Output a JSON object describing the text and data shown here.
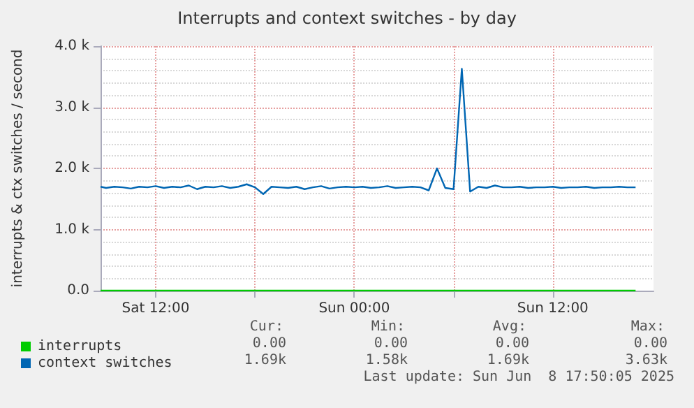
{
  "chart_data": {
    "type": "line",
    "title": "Interrupts and context switches - by day",
    "ylabel": "interrupts & ctx switches / second",
    "x": [
      "2025-06-07T08:40",
      "2025-06-07T09:00",
      "2025-06-07T09:30",
      "2025-06-07T10:00",
      "2025-06-07T10:30",
      "2025-06-07T11:00",
      "2025-06-07T11:30",
      "2025-06-07T12:00",
      "2025-06-07T12:30",
      "2025-06-07T13:00",
      "2025-06-07T13:30",
      "2025-06-07T14:00",
      "2025-06-07T14:30",
      "2025-06-07T15:00",
      "2025-06-07T15:30",
      "2025-06-07T16:00",
      "2025-06-07T16:30",
      "2025-06-07T17:00",
      "2025-06-07T17:30",
      "2025-06-07T18:00",
      "2025-06-07T18:30",
      "2025-06-07T19:00",
      "2025-06-07T19:30",
      "2025-06-07T20:00",
      "2025-06-07T20:30",
      "2025-06-07T21:00",
      "2025-06-07T21:30",
      "2025-06-07T22:00",
      "2025-06-07T22:30",
      "2025-06-07T23:00",
      "2025-06-07T23:30",
      "2025-06-08T00:00",
      "2025-06-08T00:30",
      "2025-06-08T01:00",
      "2025-06-08T01:30",
      "2025-06-08T02:00",
      "2025-06-08T02:30",
      "2025-06-08T03:00",
      "2025-06-08T03:30",
      "2025-06-08T04:00",
      "2025-06-08T04:30",
      "2025-06-08T05:00",
      "2025-06-08T05:30",
      "2025-06-08T06:00",
      "2025-06-08T06:30",
      "2025-06-08T07:00",
      "2025-06-08T07:30",
      "2025-06-08T08:00",
      "2025-06-08T08:30",
      "2025-06-08T09:00",
      "2025-06-08T09:30",
      "2025-06-08T10:00",
      "2025-06-08T10:30",
      "2025-06-08T11:00",
      "2025-06-08T11:30",
      "2025-06-08T12:00",
      "2025-06-08T12:30",
      "2025-06-08T13:00",
      "2025-06-08T13:30",
      "2025-06-08T14:00",
      "2025-06-08T14:30",
      "2025-06-08T15:00",
      "2025-06-08T15:30",
      "2025-06-08T16:00",
      "2025-06-08T16:30",
      "2025-06-08T17:00"
    ],
    "series": [
      {
        "name": "interrupts",
        "color": "#00cc00",
        "values": [
          0,
          0,
          0,
          0,
          0,
          0,
          0,
          0,
          0,
          0,
          0,
          0,
          0,
          0,
          0,
          0,
          0,
          0,
          0,
          0,
          0,
          0,
          0,
          0,
          0,
          0,
          0,
          0,
          0,
          0,
          0,
          0,
          0,
          0,
          0,
          0,
          0,
          0,
          0,
          0,
          0,
          0,
          0,
          0,
          0,
          0,
          0,
          0,
          0,
          0,
          0,
          0,
          0,
          0,
          0,
          0,
          0,
          0,
          0,
          0,
          0,
          0,
          0,
          0,
          0,
          0
        ]
      },
      {
        "name": "context switches",
        "color": "#0066b3",
        "values": [
          1700,
          1680,
          1700,
          1690,
          1670,
          1700,
          1690,
          1710,
          1680,
          1700,
          1690,
          1720,
          1660,
          1700,
          1690,
          1710,
          1680,
          1700,
          1740,
          1690,
          1580,
          1700,
          1690,
          1680,
          1700,
          1660,
          1690,
          1710,
          1670,
          1690,
          1700,
          1690,
          1700,
          1680,
          1690,
          1710,
          1680,
          1690,
          1700,
          1690,
          1640,
          2000,
          1680,
          1660,
          3630,
          1620,
          1700,
          1680,
          1720,
          1690,
          1690,
          1700,
          1680,
          1690,
          1690,
          1700,
          1680,
          1690,
          1690,
          1700,
          1680,
          1690,
          1690,
          1700,
          1690,
          1690
        ]
      }
    ],
    "xlim": [
      "2025-06-07T08:40",
      "2025-06-08T18:05"
    ],
    "xticks": [
      {
        "value": "2025-06-07T12:00",
        "label": "Sat 12:00"
      },
      {
        "value": "2025-06-07T18:00",
        "label": null
      },
      {
        "value": "2025-06-08T00:00",
        "label": "Sun 00:00"
      },
      {
        "value": "2025-06-08T06:00",
        "label": null
      },
      {
        "value": "2025-06-08T12:00",
        "label": "Sun 12:00"
      }
    ],
    "ylim": [
      0,
      4000
    ],
    "yticks": [
      {
        "value": 0,
        "label": "0.0"
      },
      {
        "value": 1000,
        "label": "1.0 k"
      },
      {
        "value": 2000,
        "label": "2.0 k"
      },
      {
        "value": 3000,
        "label": "3.0 k"
      },
      {
        "value": 4000,
        "label": "4.0 k"
      }
    ],
    "grid": true,
    "legend": "bottom left",
    "annotations": [
      "Cur:",
      "Min:",
      "Avg:",
      "Max:",
      "0.00",
      "0.00",
      "0.00",
      "0.00",
      "1.69k",
      "1.58k",
      "1.69k",
      "3.63k",
      "Last update: Sun Jun  8 17:50:05 2025"
    ]
  }
}
